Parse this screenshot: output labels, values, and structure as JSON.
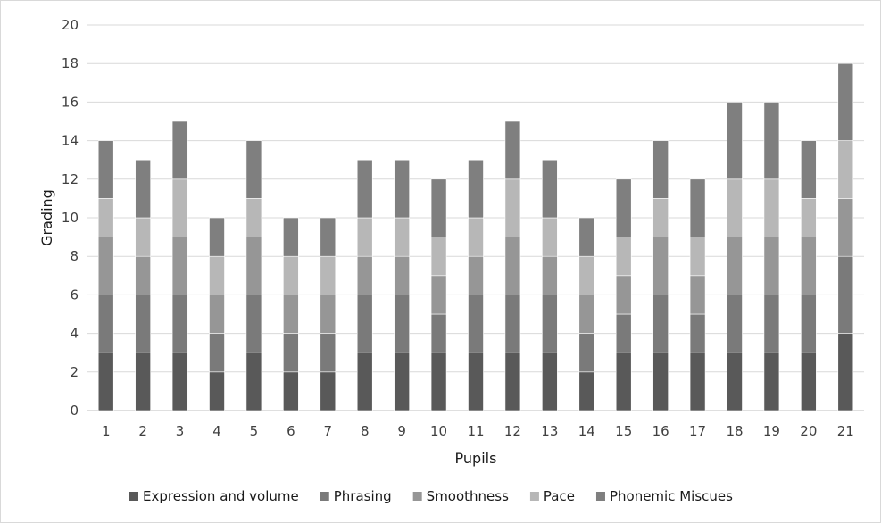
{
  "chart_data": {
    "type": "bar",
    "stacked": true,
    "title": "",
    "xlabel": "Pupils",
    "ylabel": "Grading",
    "ylim": [
      0,
      20
    ],
    "ytick_step": 2,
    "grid": true,
    "legend_position": "bottom",
    "categories": [
      "1",
      "2",
      "3",
      "4",
      "5",
      "6",
      "7",
      "8",
      "9",
      "10",
      "11",
      "12",
      "13",
      "14",
      "15",
      "16",
      "17",
      "18",
      "19",
      "20",
      "21"
    ],
    "series": [
      {
        "name": "Expression and volume",
        "color": "#595959",
        "values": [
          3,
          3,
          3,
          2,
          3,
          2,
          2,
          3,
          3,
          3,
          3,
          3,
          3,
          2,
          3,
          3,
          3,
          3,
          3,
          3,
          4
        ]
      },
      {
        "name": "Phrasing",
        "color": "#7a7a7a",
        "values": [
          3,
          3,
          3,
          2,
          3,
          2,
          2,
          3,
          3,
          2,
          3,
          3,
          3,
          2,
          2,
          3,
          2,
          3,
          3,
          3,
          4
        ]
      },
      {
        "name": "Smoothness",
        "color": "#969696",
        "values": [
          3,
          2,
          3,
          2,
          3,
          2,
          2,
          2,
          2,
          2,
          2,
          3,
          2,
          2,
          2,
          3,
          2,
          3,
          3,
          3,
          3
        ]
      },
      {
        "name": "Pace",
        "color": "#b7b7b7",
        "values": [
          2,
          2,
          3,
          2,
          2,
          2,
          2,
          2,
          2,
          2,
          2,
          3,
          2,
          2,
          2,
          2,
          2,
          3,
          3,
          2,
          3
        ]
      },
      {
        "name": "Phonemic Miscues",
        "color": "#7f7f7f",
        "values": [
          3,
          3,
          3,
          2,
          3,
          2,
          2,
          3,
          3,
          3,
          3,
          3,
          3,
          2,
          3,
          3,
          3,
          4,
          4,
          3,
          4
        ]
      }
    ]
  }
}
